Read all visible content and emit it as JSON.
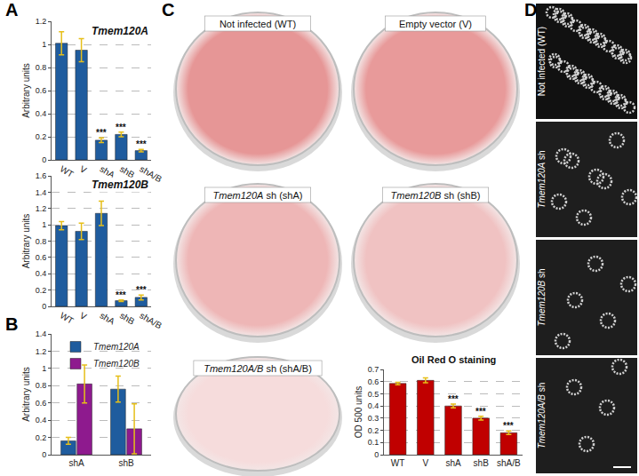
{
  "chart_data": [
    {
      "type": "bar",
      "title": "Tmem120A",
      "y_label": "Arbitrary units",
      "categories": [
        "WT",
        "V",
        "shA",
        "shB",
        "shA/B"
      ],
      "values": [
        1.01,
        0.95,
        0.17,
        0.22,
        0.08
      ],
      "errors": [
        0.1,
        0.1,
        0.02,
        0.02,
        0.01
      ],
      "significance": [
        null,
        null,
        "***",
        "***",
        "***"
      ],
      "color": "#1f5c9e",
      "ylim": [
        0,
        1.2
      ],
      "yticks": [
        0,
        0.2,
        0.4,
        0.6,
        0.8,
        1,
        1.2
      ],
      "grid": true
    },
    {
      "type": "bar",
      "title": "Tmem120B",
      "y_label": "Arbitrary units",
      "categories": [
        "WT",
        "V",
        "shA",
        "shB",
        "shA/B"
      ],
      "values": [
        0.99,
        0.92,
        1.14,
        0.07,
        0.11
      ],
      "errors": [
        0.05,
        0.1,
        0.15,
        0.01,
        0.03
      ],
      "significance": [
        null,
        null,
        null,
        "***",
        "***"
      ],
      "color": "#1f5c9e",
      "ylim": [
        0,
        1.6
      ],
      "yticks": [
        0,
        0.2,
        0.4,
        0.6,
        0.8,
        1,
        1.2,
        1.4,
        1.6
      ],
      "grid": true
    },
    {
      "type": "bar",
      "y_label": "Arbitrary units",
      "categories": [
        "shA",
        "shB"
      ],
      "series": [
        {
          "name": "Tmem120A",
          "color": "#1f5c9e",
          "values": [
            0.16,
            0.76
          ],
          "errors": [
            0.04,
            0.15
          ]
        },
        {
          "name": "Tmem120B",
          "color": "#8e1a8e",
          "values": [
            0.82,
            0.3
          ],
          "errors": [
            0.22,
            0.29
          ]
        }
      ],
      "ylim": [
        0,
        1.4
      ],
      "yticks": [
        0,
        0.2,
        0.4,
        0.6,
        0.8,
        1,
        1.2,
        1.4
      ],
      "grid": true,
      "legend": "top"
    },
    {
      "type": "bar",
      "title": "Oil Red O staining",
      "y_label": "OD 500 units",
      "categories": [
        "WT",
        "V",
        "shA",
        "shB",
        "shA/B"
      ],
      "values": [
        0.585,
        0.61,
        0.4,
        0.3,
        0.18
      ],
      "errors": [
        0.01,
        0.02,
        0.015,
        0.015,
        0.015
      ],
      "significance": [
        null,
        null,
        "***",
        "***",
        "***"
      ],
      "color": "#c00000",
      "ylim": [
        0,
        0.7
      ],
      "yticks": [
        0,
        0.1,
        0.2,
        0.3,
        0.4,
        0.5,
        0.6,
        0.7
      ],
      "grid": true
    }
  ],
  "panels": {
    "labels": [
      "A",
      "B",
      "C",
      "D"
    ],
    "dishes": [
      "Not infected (WT)",
      "Empty vector (V)",
      "Tmem120A sh (shA)",
      "Tmem120B sh (shB)",
      "Tmem120A/B sh (shA/B)"
    ],
    "micrographs": [
      "Not infected (WT)",
      "Tmem120A sh",
      "Tmem120B sh",
      "Tmem120A/B sh"
    ]
  }
}
